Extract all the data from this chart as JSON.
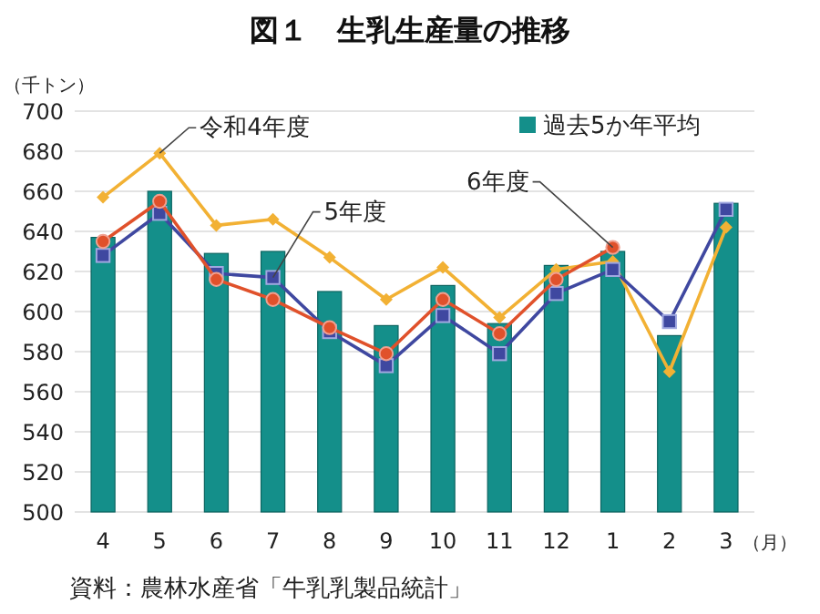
{
  "chart_data": {
    "type": "bar",
    "title": "図１　生乳生産量の推移",
    "ylabel": "（千トン）",
    "xlabel": "（月）",
    "categories": [
      "4",
      "5",
      "6",
      "7",
      "8",
      "9",
      "10",
      "11",
      "12",
      "1",
      "2",
      "3"
    ],
    "series": [
      {
        "name": "過去5か年平均",
        "color": "#148f8a",
        "values": [
          637,
          660,
          629,
          630,
          610,
          593,
          613,
          594,
          623,
          630,
          588,
          654
        ]
      },
      {
        "name": "令和4年度",
        "type": "line",
        "color": "#f2b134",
        "marker": "diamond",
        "values": [
          657,
          679,
          643,
          646,
          627,
          606,
          622,
          597,
          621,
          625,
          570,
          642
        ]
      },
      {
        "name": "5年度",
        "type": "line",
        "color": "#3f48a0",
        "marker": "square",
        "values": [
          628,
          649,
          619,
          617,
          590,
          573,
          598,
          579,
          609,
          621,
          595,
          651
        ]
      },
      {
        "name": "6年度",
        "type": "line",
        "color": "#e0512b",
        "marker": "circle",
        "values": [
          635,
          655,
          616,
          606,
          592,
          579,
          606,
          589,
          616,
          632,
          null,
          null
        ]
      }
    ],
    "ylim": [
      500,
      700
    ],
    "yticks": [
      500,
      520,
      540,
      560,
      580,
      600,
      620,
      640,
      660,
      680,
      700
    ],
    "grid": "y",
    "legend": "top right",
    "annotations": [
      "資料：農林水産省「牛乳乳製品統計」"
    ]
  }
}
